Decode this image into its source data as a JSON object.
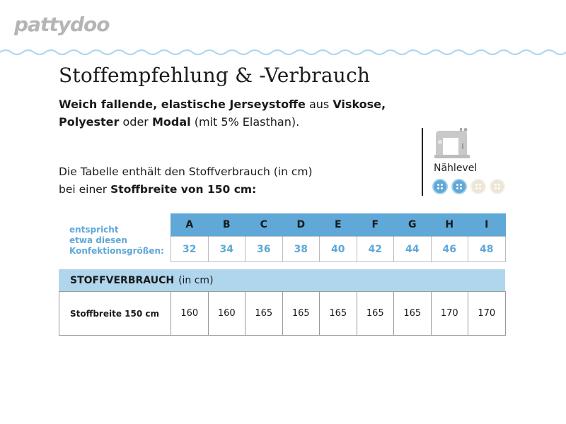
{
  "brand": {
    "logo_text": "pattydoo"
  },
  "page": {
    "title": "Stoffempfehlung & -Verbrauch",
    "intro": {
      "part1": "Weich fallende, elastische Jerseystoffe",
      "part2": " aus ",
      "part3": "Viskose,",
      "part4": "Polyester",
      "part5": " oder ",
      "part6": "Modal",
      "part7": " (mit 5% Elasthan)."
    },
    "table_note": {
      "line1": "Die Tabelle enthält den Stoffverbrauch (in cm)",
      "line2_prefix": "bei einer ",
      "line2_bold": "Stoffbreite von 150 cm:"
    }
  },
  "skill_level": {
    "label": "Nählevel",
    "icon": "sewing-machine-icon",
    "filled": 2,
    "total": 4,
    "colors": {
      "filled": "#5fa8d8",
      "empty": "#ece6d6"
    }
  },
  "size_table": {
    "caption": [
      "entspricht",
      "etwa diesen",
      "Konfektionsgrößen:"
    ],
    "letters": [
      "A",
      "B",
      "C",
      "D",
      "E",
      "F",
      "G",
      "H",
      "I"
    ],
    "sizes": [
      "32",
      "34",
      "36",
      "38",
      "40",
      "42",
      "44",
      "46",
      "48"
    ]
  },
  "usage": {
    "header_bold": "STOFFVERBRAUCH",
    "header_unit": "(in cm)",
    "row_label": "Stoffbreite 150 cm",
    "values": [
      "160",
      "160",
      "165",
      "165",
      "165",
      "165",
      "165",
      "170",
      "170"
    ]
  },
  "colors": {
    "accent": "#5fa8d8",
    "accent_light": "#b0d6ee",
    "logo": "#b5b5b5"
  }
}
